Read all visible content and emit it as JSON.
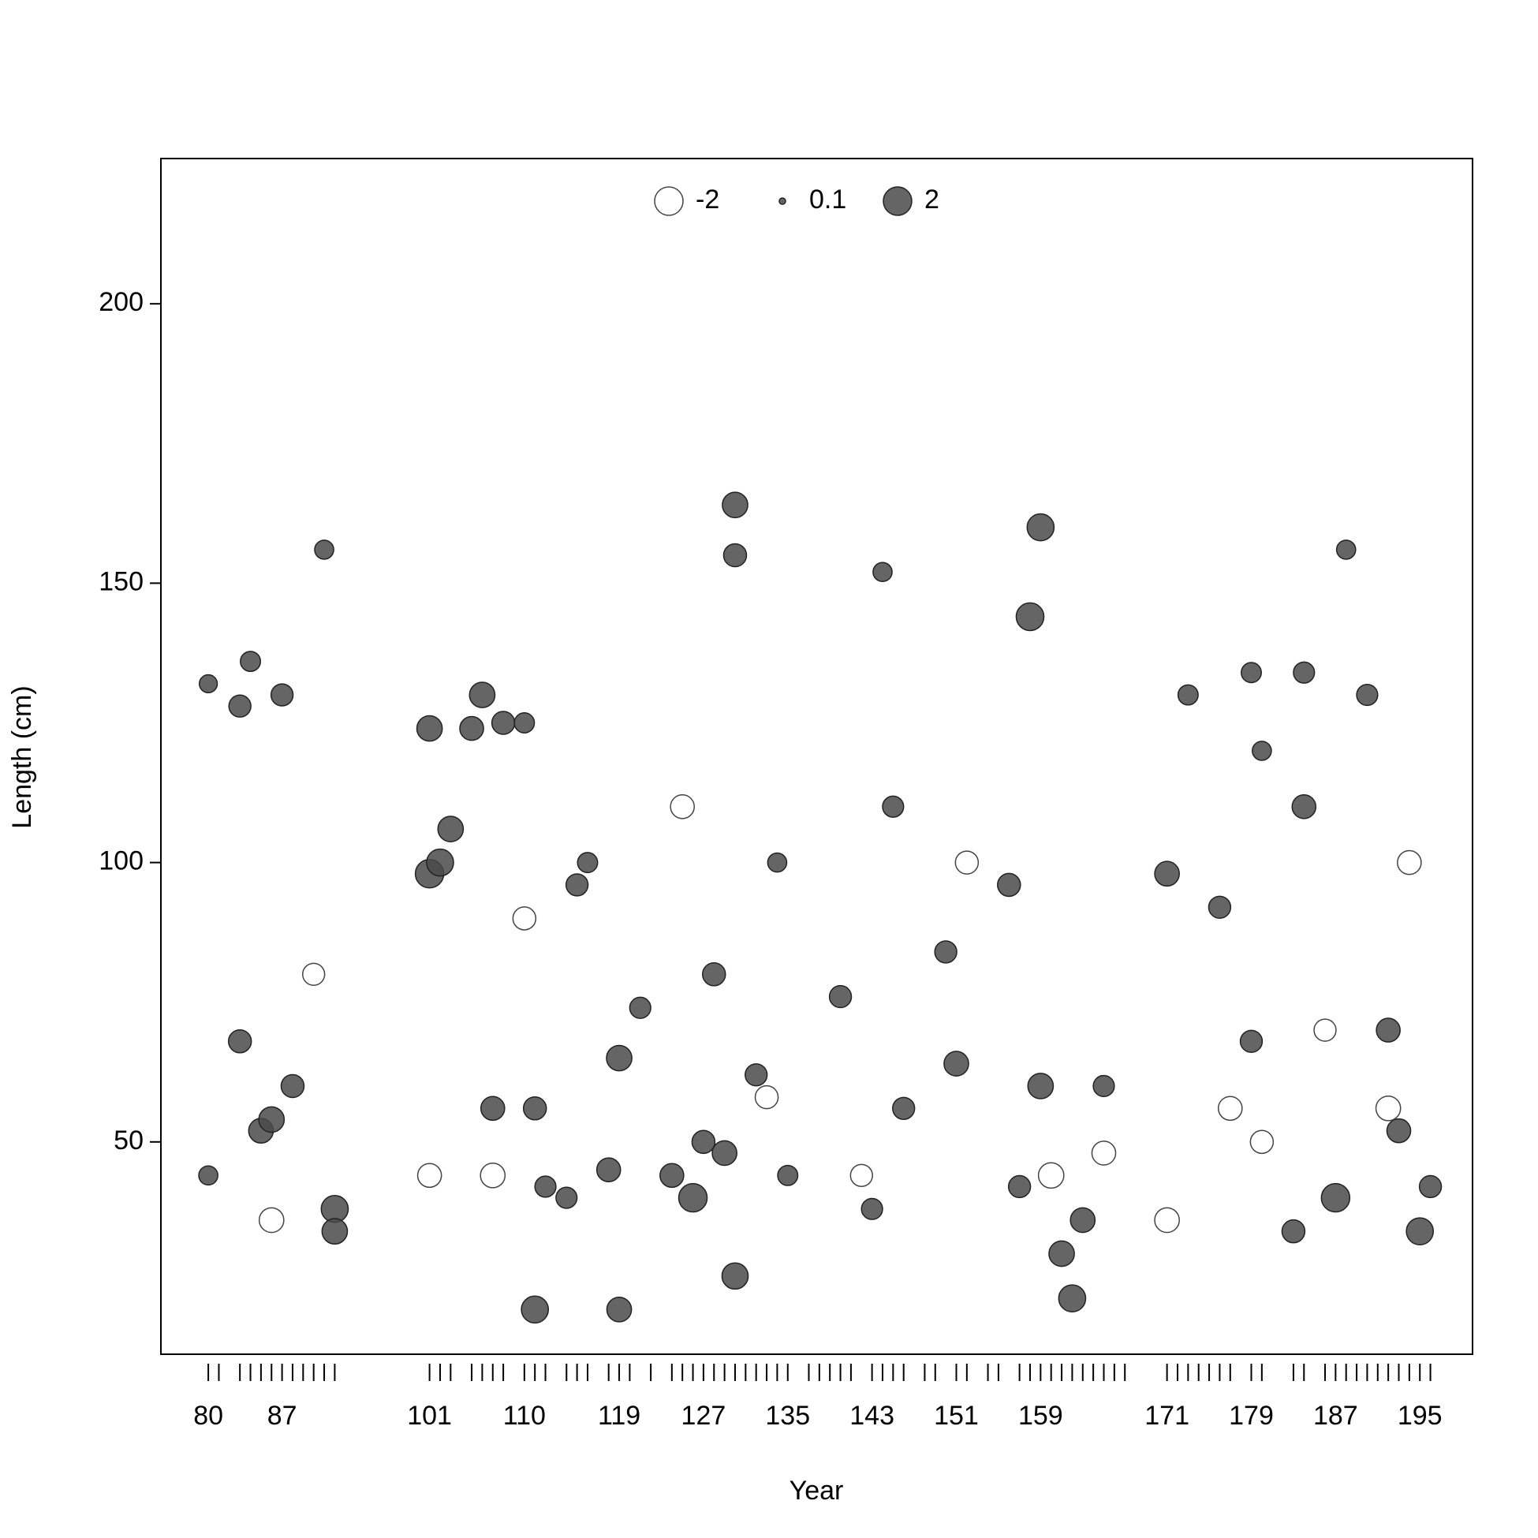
{
  "chart_data": {
    "type": "bubble",
    "x_label": "Year",
    "y_label": "Length (cm)",
    "xlim": [
      75.5,
      200
    ],
    "ylim": [
      12,
      226
    ],
    "xticks": [
      80,
      87,
      101,
      110,
      119,
      127,
      135,
      143,
      151,
      159,
      171,
      179,
      187,
      195
    ],
    "yticks": [
      50,
      100,
      150,
      200
    ],
    "years": [
      80,
      81,
      83,
      84,
      85,
      86,
      87,
      88,
      89,
      90,
      91,
      92,
      101,
      102,
      103,
      105,
      106,
      107,
      108,
      110,
      111,
      112,
      114,
      115,
      116,
      118,
      119,
      120,
      122,
      124,
      125,
      126,
      127,
      128,
      129,
      130,
      131,
      132,
      133,
      134,
      135,
      137,
      138,
      139,
      140,
      141,
      143,
      144,
      145,
      146,
      148,
      149,
      151,
      152,
      154,
      155,
      157,
      158,
      159,
      160,
      161,
      162,
      163,
      164,
      165,
      166,
      167,
      171,
      172,
      173,
      174,
      175,
      176,
      177,
      179,
      180,
      183,
      184,
      186,
      187,
      188,
      189,
      190,
      191,
      192,
      193,
      194,
      195,
      196
    ],
    "legend": [
      -2,
      0.1,
      2
    ],
    "positive_color": "#4a4a4a",
    "negative_color": "#ffffff",
    "points": {
      "x": [
        80,
        80,
        83,
        83,
        84,
        85,
        86,
        87,
        88,
        91,
        92,
        92,
        101,
        101,
        102,
        103,
        105,
        106,
        107,
        108,
        110,
        111,
        111,
        112,
        114,
        115,
        116,
        118,
        119,
        119,
        121,
        124,
        126,
        127,
        128,
        129,
        130,
        130,
        130,
        132,
        134,
        135,
        140,
        143,
        144,
        145,
        146,
        151,
        150,
        156,
        157,
        158,
        159,
        159,
        161,
        162,
        163,
        165,
        171,
        173,
        176,
        179,
        179,
        180,
        184,
        184,
        183,
        187,
        188,
        190,
        192,
        193,
        195,
        196,
        86,
        90,
        101,
        107,
        110,
        125,
        133,
        142,
        152,
        160,
        165,
        171,
        177,
        180,
        186,
        194,
        192
      ],
      "y": [
        132,
        44,
        128,
        68,
        136,
        52,
        54,
        130,
        60,
        156,
        38,
        34,
        124,
        98,
        100,
        106,
        124,
        130,
        56,
        125,
        125,
        56,
        20,
        42,
        40,
        96,
        100,
        45,
        65,
        20,
        74,
        44,
        40,
        50,
        80,
        48,
        164,
        155,
        26,
        62,
        100,
        44,
        76,
        38,
        152,
        110,
        56,
        64,
        84,
        96,
        42,
        144,
        160,
        60,
        30,
        22,
        36,
        60,
        98,
        130,
        92,
        134,
        68,
        120,
        134,
        110,
        34,
        40,
        156,
        130,
        70,
        52,
        34,
        42,
        36,
        80,
        44,
        44,
        90,
        110,
        58,
        44,
        100,
        44,
        48,
        36,
        56,
        50,
        70,
        100,
        56
      ],
      "values": [
        0.8,
        0.9,
        1.2,
        1.3,
        1,
        1.5,
        1.6,
        1.2,
        1.3,
        0.9,
        1.8,
        1.6,
        1.6,
        2,
        1.8,
        1.6,
        1.4,
        1.6,
        1.4,
        1.3,
        1,
        1.3,
        1.8,
        1.1,
        1.1,
        1.2,
        1,
        1.4,
        1.6,
        1.5,
        1.1,
        1.4,
        2,
        1.3,
        1.3,
        1.5,
        1.6,
        1.3,
        1.7,
        1.2,
        0.9,
        1,
        1.2,
        1.1,
        0.9,
        1.1,
        1.2,
        1.5,
        1.2,
        1.3,
        1.2,
        1.9,
        1.8,
        1.6,
        1.6,
        1.8,
        1.5,
        1.1,
        1.5,
        1,
        1.2,
        1,
        1.2,
        0.9,
        1.1,
        1.4,
        1.3,
        2,
        0.9,
        1.1,
        1.4,
        1.4,
        1.8,
        1.2,
        -1.5,
        -1.2,
        -1.4,
        -1.5,
        -1.3,
        -1.4,
        -1.3,
        -1.2,
        -1.3,
        -1.6,
        -1.4,
        -1.5,
        -1.4,
        -1.3,
        -1.2,
        -1.4,
        -1.5
      ]
    }
  }
}
